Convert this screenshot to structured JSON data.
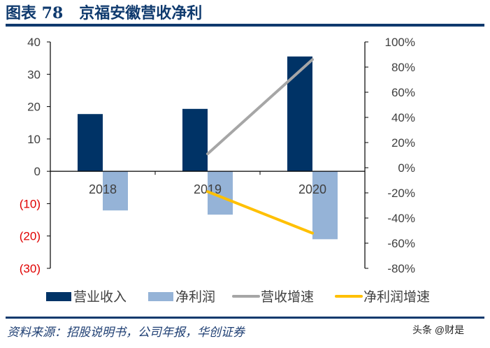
{
  "header": {
    "title": "图表 78   京福安徽营收净利"
  },
  "footer": {
    "source": "资料来源：招股说明书，公司年报，华创证券",
    "watermark": "头条 @财是"
  },
  "chart_data": {
    "type": "bar+line",
    "categories": [
      "2018",
      "2019",
      "2020"
    ],
    "left_axis": {
      "ylim": [
        -30,
        40
      ],
      "ticks": [
        40,
        30,
        20,
        10,
        0,
        -10,
        -20,
        -30
      ],
      "tick_labels": [
        "40",
        "30",
        "20",
        "10",
        "0",
        "(10)",
        "(20)",
        "(30)"
      ],
      "negative_color": "#e00000"
    },
    "right_axis": {
      "ylim": [
        -80,
        100
      ],
      "ticks": [
        100,
        80,
        60,
        40,
        20,
        0,
        -20,
        -40,
        -60,
        -80
      ],
      "tick_labels": [
        "100%",
        "80%",
        "60%",
        "40%",
        "20%",
        "0%",
        "-20%",
        "-40%",
        "-60%",
        "-80%"
      ]
    },
    "series": [
      {
        "name": "营业收入",
        "type": "bar",
        "axis": "left",
        "color": "#003366",
        "values": [
          17.7,
          19.3,
          35.5
        ]
      },
      {
        "name": "净利润",
        "type": "bar",
        "axis": "left",
        "color": "#95b3d7",
        "values": [
          -12.1,
          -13.4,
          -21.0
        ]
      },
      {
        "name": "营收增速",
        "type": "line",
        "axis": "right",
        "color": "#a6a6a6",
        "values": [
          null,
          11,
          86
        ]
      },
      {
        "name": "净利润增速",
        "type": "line",
        "axis": "right",
        "color": "#ffc000",
        "values": [
          null,
          -19,
          -52
        ]
      }
    ],
    "legend": "bottom",
    "grid": false
  }
}
